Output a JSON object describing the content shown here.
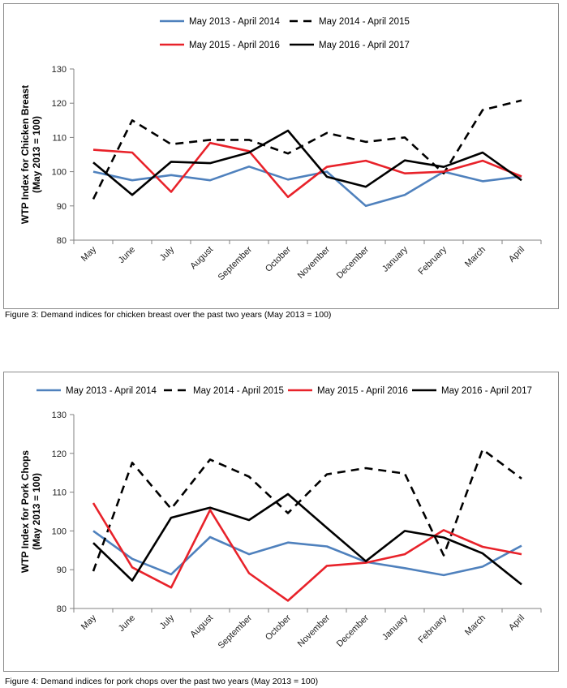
{
  "charts": [
    {
      "caption": "Figure 3: Demand indices for chicken breast over the past two years (May 2013 = 100)",
      "chart_data": {
        "type": "line",
        "categories": [
          "May",
          "June",
          "July",
          "August",
          "September",
          "October",
          "November",
          "December",
          "January",
          "February",
          "March",
          "April"
        ],
        "ylabel_line1": "WTP Index for Chicken Breast",
        "ylabel_line2": "(May 2013 = 100)",
        "ylim": [
          80,
          130
        ],
        "yticks": [
          80,
          90,
          100,
          110,
          120,
          130
        ],
        "grid": false,
        "legend_position": "top",
        "series": [
          {
            "name": "May 2013 - April 2014",
            "color": "#4f81bd",
            "dash": "solid",
            "values": [
              100,
              97.5,
              99,
              97.5,
              101.5,
              97.7,
              100,
              90,
              93.2,
              100,
              97.2,
              98.6
            ]
          },
          {
            "name": "May 2014 - April 2015",
            "color": "#000000",
            "dash": "dashed",
            "values": [
              92,
              115,
              108,
              109.3,
              109.3,
              105.3,
              111.3,
              108.7,
              110,
              99.5,
              118,
              120.8
            ]
          },
          {
            "name": "May 2015 - April 2016",
            "color": "#e8222a",
            "dash": "solid",
            "values": [
              106.4,
              105.6,
              94.1,
              108.4,
              106,
              92.6,
              101.4,
              103.2,
              99.5,
              100,
              103.2,
              98.6
            ]
          },
          {
            "name": "May 2016 - April 2017",
            "color": "#000000",
            "dash": "solid",
            "values": [
              102.7,
              93.2,
              102.9,
              102.5,
              105.6,
              112,
              98.5,
              95.6,
              103.3,
              101.4,
              105.6,
              97.5
            ]
          }
        ]
      }
    },
    {
      "caption": "Figure 4: Demand indices for pork chops over the past two years (May 2013 = 100)",
      "chart_data": {
        "type": "line",
        "categories": [
          "May",
          "June",
          "July",
          "August",
          "September",
          "October",
          "November",
          "December",
          "January",
          "February",
          "March",
          "April"
        ],
        "ylabel_line1": "WTP Index for Pork Chops",
        "ylabel_line2": "(May 2013 = 100)",
        "ylim": [
          80,
          130
        ],
        "yticks": [
          80,
          90,
          100,
          110,
          120,
          130
        ],
        "grid": false,
        "legend_position": "top",
        "series": [
          {
            "name": "May 2013 - April 2014",
            "color": "#4f81bd",
            "dash": "solid",
            "values": [
              100,
              92.8,
              88.8,
              98.4,
              94,
              97,
              96,
              92,
              90.4,
              88.6,
              90.8,
              96.2
            ]
          },
          {
            "name": "May 2014 - April 2015",
            "color": "#000000",
            "dash": "dashed",
            "values": [
              89.6,
              117.6,
              105.7,
              118.4,
              114,
              104.6,
              114.6,
              116.2,
              114.8,
              93.7,
              121,
              113.5
            ]
          },
          {
            "name": "May 2015 - April 2016",
            "color": "#e8222a",
            "dash": "solid",
            "values": [
              107.2,
              90.6,
              85.4,
              105.4,
              89.1,
              82,
              91,
              91.8,
              94,
              100.2,
              95.9,
              94
            ]
          },
          {
            "name": "May 2016 - April 2017",
            "color": "#000000",
            "dash": "solid",
            "values": [
              96.9,
              87.2,
              103.4,
              106,
              102.8,
              109.5,
              100.8,
              92.2,
              100,
              98.3,
              94.2,
              86.2
            ]
          }
        ]
      }
    }
  ]
}
